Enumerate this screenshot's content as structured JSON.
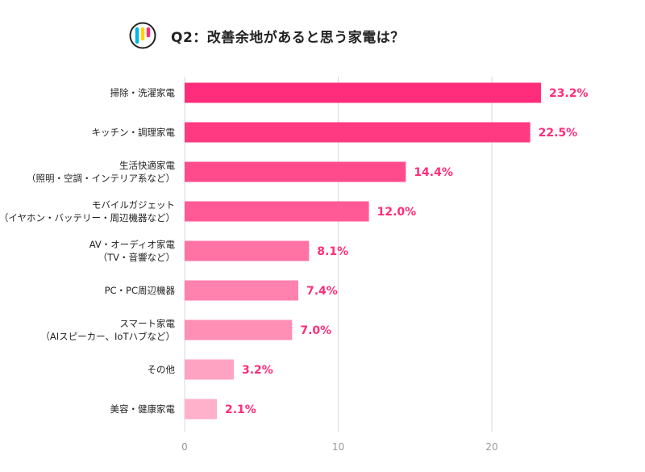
{
  "chart_data": {
    "type": "bar",
    "orientation": "horizontal",
    "title": "Q2：改善余地があると思う家電は？",
    "categories": [
      [
        "掃除・洗濯家電"
      ],
      [
        "キッチン・調理家電"
      ],
      [
        "生活快適家電",
        "（照明・空調・インテリア系など）"
      ],
      [
        "モバイルガジェット",
        "（イヤホン・バッテリー・周辺機器など）"
      ],
      [
        "AV・オーディオ家電",
        "（TV・音響など）"
      ],
      [
        "PC・PC周辺機器"
      ],
      [
        "スマート家電",
        "（AIスピーカー、IoTハブなど）"
      ],
      [
        "その他"
      ],
      [
        "美容・健康家電"
      ]
    ],
    "values": [
      23.2,
      22.5,
      14.4,
      12.0,
      8.1,
      7.4,
      7.0,
      3.2,
      2.1
    ],
    "value_labels": [
      "23.2%",
      "22.5%",
      "14.4%",
      "12.0%",
      "8.1%",
      "7.4%",
      "7.0%",
      "3.2%",
      "2.1%"
    ],
    "xlim": [
      0,
      24
    ],
    "xticks": [
      0,
      10,
      20
    ],
    "grid": true,
    "bar_colors": [
      "#ff2d7b",
      "#ff3a82",
      "#ff4b8c",
      "#ff5a96",
      "#ff72a4",
      "#ff81ad",
      "#ff8fb5",
      "#ffa3c2",
      "#ffb0ca"
    ],
    "value_label_color": "#ff2d7b"
  },
  "logo_colors": [
    "#00b9e8",
    "#ffd300",
    "#ff2d7b"
  ]
}
